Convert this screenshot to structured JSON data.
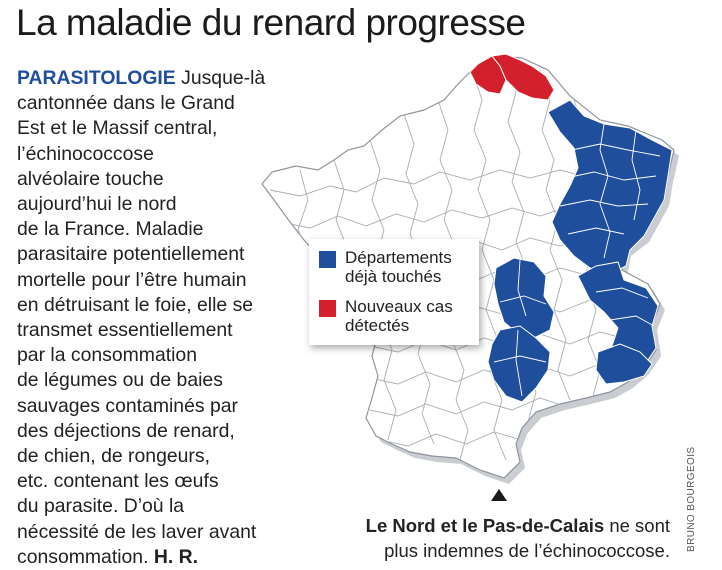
{
  "title": "La maladie du renard progresse",
  "article": {
    "kicker": "PARASITOLOGIE",
    "lines": [
      "Jusque-là",
      "cantonnée dans le Grand",
      "Est et le Massif central,",
      "l’échinococcose",
      "alvéolaire touche",
      "aujourd’hui le nord",
      "de la France. Maladie",
      "parasitaire potentiellement",
      "mortelle pour l’être humain",
      "en détruisant le foie, elle se",
      "transmet essentiellement",
      "par la consommation",
      "de légumes ou de baies",
      "sauvages contaminés par",
      "des déjections de renard,",
      "de chien, de rongeurs,",
      "etc. contenant les œufs",
      "du parasite. D’où la",
      "nécessité de les laver avant",
      "consommation."
    ],
    "signature": "H. R."
  },
  "legend": {
    "items": [
      {
        "label": "Départements déjà touchés",
        "color": "#1f4e9c"
      },
      {
        "label": "Nouveaux cas détectés",
        "color": "#d41f2c"
      }
    ]
  },
  "caption": {
    "bold": "Le Nord et le Pas-de-Calais",
    "rest_line1": "ne sont",
    "line2": "plus indemnes de l’échinococcose."
  },
  "credit": "BRUNO BOURGEOIS",
  "colors": {
    "affected": "#1f4e9c",
    "new_cases": "#d41f2c",
    "land": "#ffffff",
    "border": "#9aa1a8",
    "shadow": "#c9ccd0"
  }
}
